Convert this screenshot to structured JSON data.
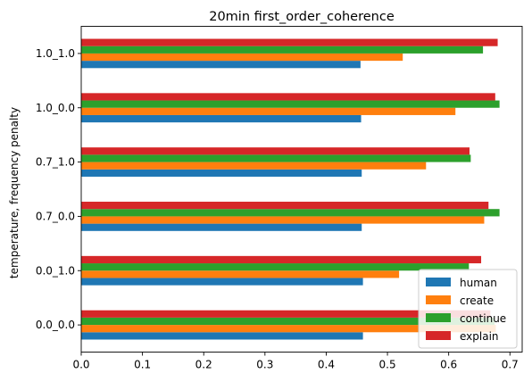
{
  "chart_data": {
    "type": "bar",
    "orientation": "horizontal",
    "title": "20min first_order_coherence",
    "xlabel": "",
    "ylabel": "temperature, frequency penalty",
    "xlim": [
      0,
      0.72
    ],
    "xticks": [
      0.0,
      0.1,
      0.2,
      0.3,
      0.4,
      0.5,
      0.6,
      0.7
    ],
    "xtick_labels": [
      "0.0",
      "0.1",
      "0.2",
      "0.3",
      "0.4",
      "0.5",
      "0.6",
      "0.7"
    ],
    "categories": [
      "0.0_0.0",
      "0.0_1.0",
      "0.7_0.0",
      "0.7_1.0",
      "1.0_0.0",
      "1.0_1.0"
    ],
    "series": [
      {
        "name": "human",
        "color": "#1f77b4",
        "values": [
          0.46,
          0.46,
          0.458,
          0.458,
          0.457,
          0.456
        ]
      },
      {
        "name": "create",
        "color": "#ff7f0e",
        "values": [
          0.677,
          0.519,
          0.658,
          0.563,
          0.611,
          0.525
        ]
      },
      {
        "name": "continue",
        "color": "#2ca02c",
        "values": [
          0.675,
          0.633,
          0.683,
          0.636,
          0.683,
          0.656
        ]
      },
      {
        "name": "explain",
        "color": "#d62728",
        "values": [
          0.668,
          0.653,
          0.665,
          0.634,
          0.676,
          0.68
        ]
      }
    ],
    "legend_position": "lower right",
    "grid": false
  }
}
